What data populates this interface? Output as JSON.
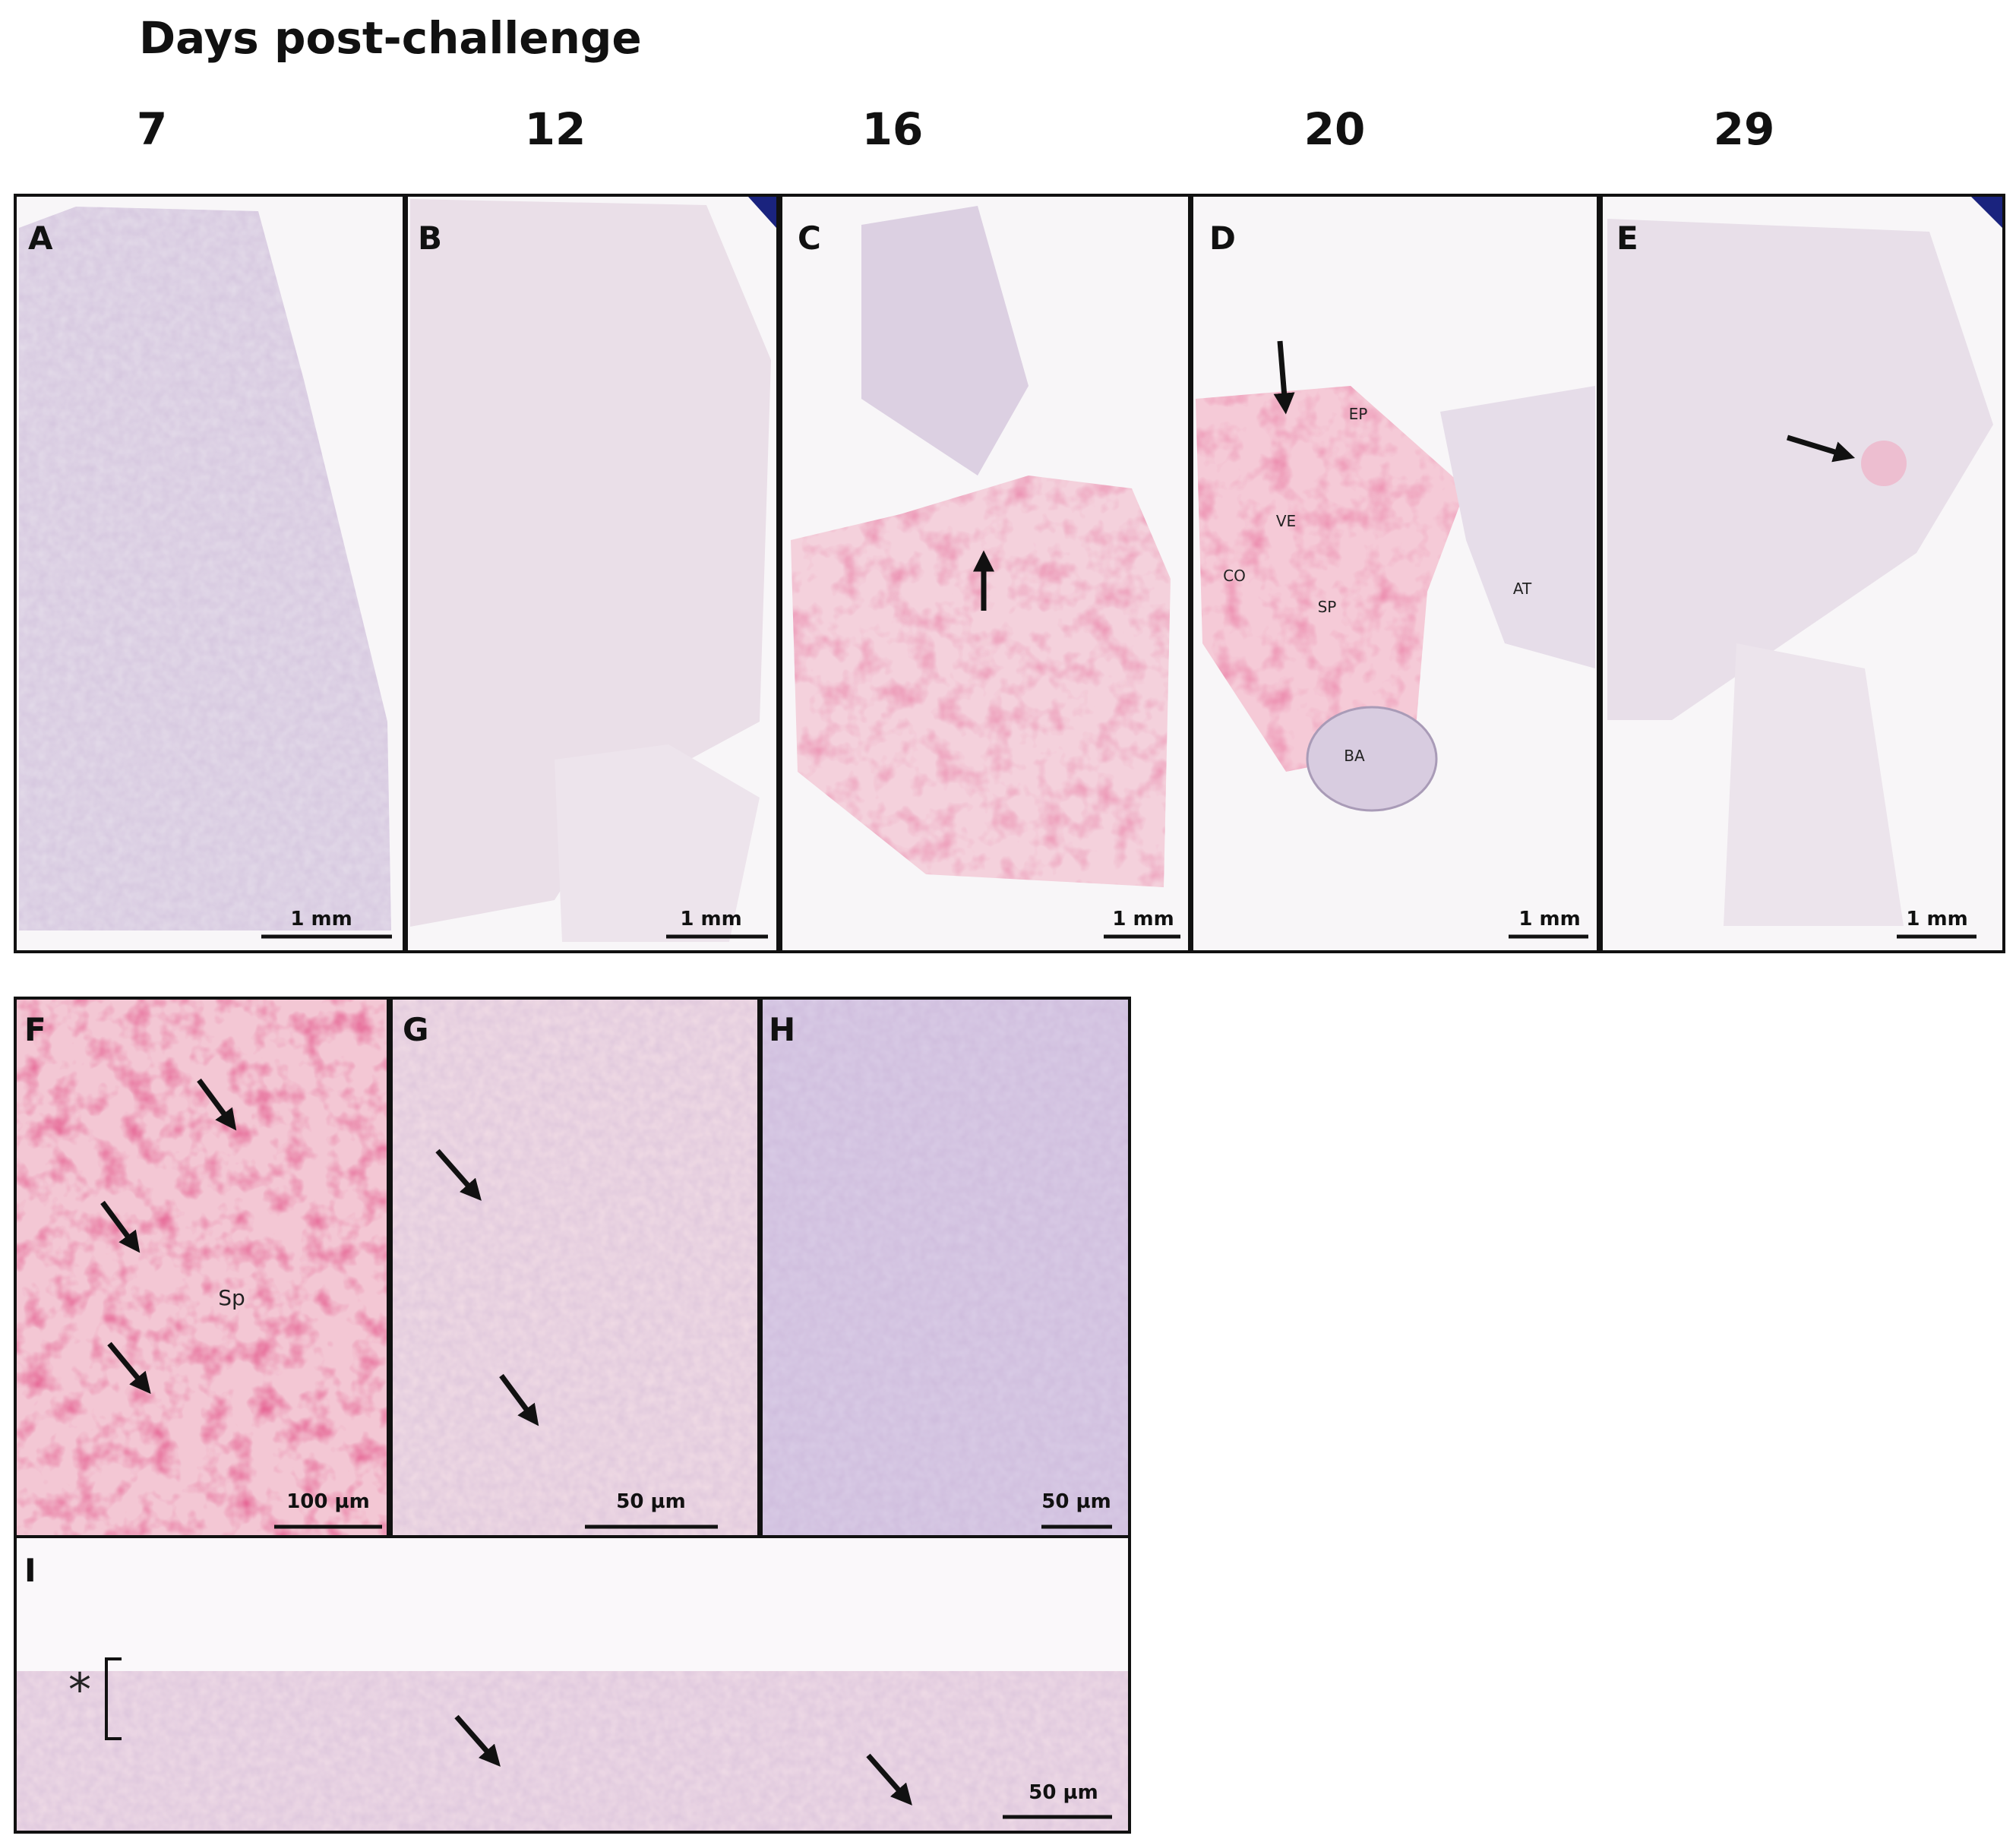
{
  "header": {
    "title": "Days post-challenge",
    "days": [
      "7",
      "12",
      "16",
      "20",
      "29"
    ]
  },
  "panels": [
    {
      "letter": "A",
      "scale_bar": "1 mm"
    },
    {
      "letter": "B",
      "scale_bar": "1 mm"
    },
    {
      "letter": "C",
      "scale_bar": "1 mm"
    },
    {
      "letter": "D",
      "scale_bar": "1 mm",
      "labels": [
        "EP",
        "VE",
        "CO",
        "SP",
        "AT",
        "BA"
      ]
    },
    {
      "letter": "E",
      "scale_bar": "1 mm"
    },
    {
      "letter": "F",
      "scale_bar": "100 µm",
      "labels": [
        "Sp"
      ]
    },
    {
      "letter": "G",
      "scale_bar": "50 µm"
    },
    {
      "letter": "H",
      "scale_bar": "50 µm"
    },
    {
      "letter": "I",
      "scale_bar": "50 µm",
      "labels": [
        "*"
      ]
    }
  ]
}
